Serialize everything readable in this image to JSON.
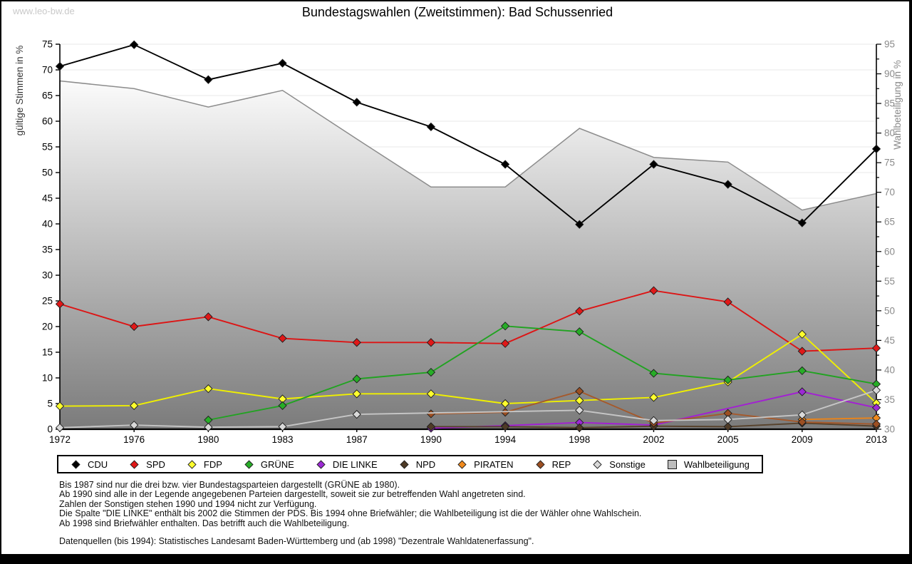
{
  "watermark": "www.leo-bw.de",
  "title": "Bundestagswahlen (Zweitstimmen): Bad Schussenried",
  "chart_data": {
    "type": "line",
    "title": "Bundestagswahlen (Zweitstimmen): Bad Schussenried",
    "x_years": [
      "1972",
      "1976",
      "1980",
      "1983",
      "1987",
      "1990",
      "1994",
      "1998",
      "2002",
      "2005",
      "2009",
      "2013"
    ],
    "left_axis": {
      "label": "gültige Stimmen in %",
      "min": 0,
      "max": 75,
      "step": 5
    },
    "right_axis": {
      "label": "Wahlbeteiligung in %",
      "min": 30,
      "max": 95,
      "step": 5,
      "minor_step": 2.5
    },
    "grid": true,
    "legend_position": "bottom",
    "series": [
      {
        "name": "CDU",
        "kind": "line",
        "axis": "left",
        "marker": "diamond",
        "color": "#000000",
        "fill": "#000000",
        "values": [
          70.7,
          74.9,
          68.1,
          71.3,
          63.7,
          58.9,
          51.6,
          39.9,
          51.6,
          47.7,
          40.2,
          54.6
        ]
      },
      {
        "name": "SPD",
        "kind": "line",
        "axis": "left",
        "marker": "diamond",
        "color": "#dd1414",
        "fill": "#e01818",
        "values": [
          24.4,
          20.0,
          21.9,
          17.7,
          16.9,
          16.9,
          16.7,
          23.0,
          27.0,
          24.8,
          15.2,
          15.8
        ]
      },
      {
        "name": "FDP",
        "kind": "line",
        "axis": "left",
        "marker": "diamond",
        "color": "#f0f000",
        "fill": "#ffff2e",
        "values": [
          4.5,
          4.6,
          7.9,
          5.9,
          6.9,
          6.9,
          5.0,
          5.6,
          6.2,
          9.2,
          18.5,
          5.1
        ]
      },
      {
        "name": "GRÜNE",
        "kind": "line",
        "axis": "left",
        "marker": "diamond",
        "color": "#21a321",
        "fill": "#27ad27",
        "values": [
          null,
          null,
          1.8,
          4.6,
          9.8,
          11.1,
          20.1,
          19.0,
          10.9,
          9.6,
          11.4,
          8.8
        ]
      },
      {
        "name": "DIE LINKE",
        "kind": "line",
        "axis": "left",
        "marker": "diamond",
        "color": "#a31fd4",
        "fill": "#9c2ad4",
        "values": [
          null,
          null,
          null,
          null,
          null,
          0.2,
          0.7,
          1.3,
          0.8,
          null,
          7.3,
          4.2
        ]
      },
      {
        "name": "NPD",
        "kind": "line",
        "axis": "left",
        "marker": "diamond",
        "color": "#57422c",
        "fill": "#4e3a26",
        "values": [
          null,
          null,
          null,
          null,
          null,
          0.5,
          0.5,
          0.3,
          0.6,
          0.5,
          1.2,
          0.6
        ]
      },
      {
        "name": "PIRATEN",
        "kind": "line",
        "axis": "left",
        "marker": "diamond",
        "color": "#ec8418",
        "fill": "#f08a1e",
        "values": [
          null,
          null,
          null,
          null,
          null,
          null,
          null,
          null,
          null,
          null,
          1.9,
          2.2
        ]
      },
      {
        "name": "REP",
        "kind": "line",
        "axis": "left",
        "marker": "diamond",
        "color": "#a5592b",
        "fill": "#9c4f22",
        "values": [
          null,
          null,
          null,
          null,
          null,
          3.0,
          3.3,
          7.4,
          1.2,
          3.1,
          1.4,
          1.0
        ]
      },
      {
        "name": "Sonstige",
        "kind": "line",
        "axis": "left",
        "marker": "diamond",
        "color": "#c6c6c6",
        "fill": "#d9d9d9",
        "values": [
          0.3,
          0.8,
          0.4,
          0.5,
          2.9,
          null,
          null,
          3.7,
          1.7,
          1.9,
          2.8,
          7.6
        ]
      },
      {
        "name": "Wahlbeteiligung",
        "kind": "area",
        "axis": "right",
        "marker": "square",
        "color": "#8c8c8c",
        "fill_top": "#fbfbfb",
        "fill_bottom": "#7b7b7b",
        "fill": "#bdbdbd",
        "values": [
          88.8,
          87.5,
          84.4,
          87.2,
          79.0,
          70.9,
          70.9,
          80.8,
          75.9,
          75.1,
          67.0,
          69.8
        ]
      }
    ]
  },
  "footnotes": [
    "Bis 1987 sind nur die drei bzw. vier Bundestagsparteien dargestellt (GRÜNE ab 1980).",
    "Ab 1990 sind alle in der Legende angegebenen Parteien dargestellt, soweit sie zur betreffenden Wahl angetreten sind.",
    "Zahlen der Sonstigen stehen 1990 und 1994 nicht zur Verfügung.",
    "Die Spalte \"DIE LINKE\" enthält bis 2002 die Stimmen der PDS. Bis 1994 ohne Briefwähler; die Wahlbeteiligung ist die der Wähler ohne Wahlschein.",
    "Ab 1998 sind Briefwähler enthalten. Das betrifft auch die Wahlbeteiligung."
  ],
  "source_note": "Datenquellen (bis 1994): Statistisches Landesamt Baden-Württemberg und (ab 1998) \"Dezentrale Wahldatenerfassung\"."
}
